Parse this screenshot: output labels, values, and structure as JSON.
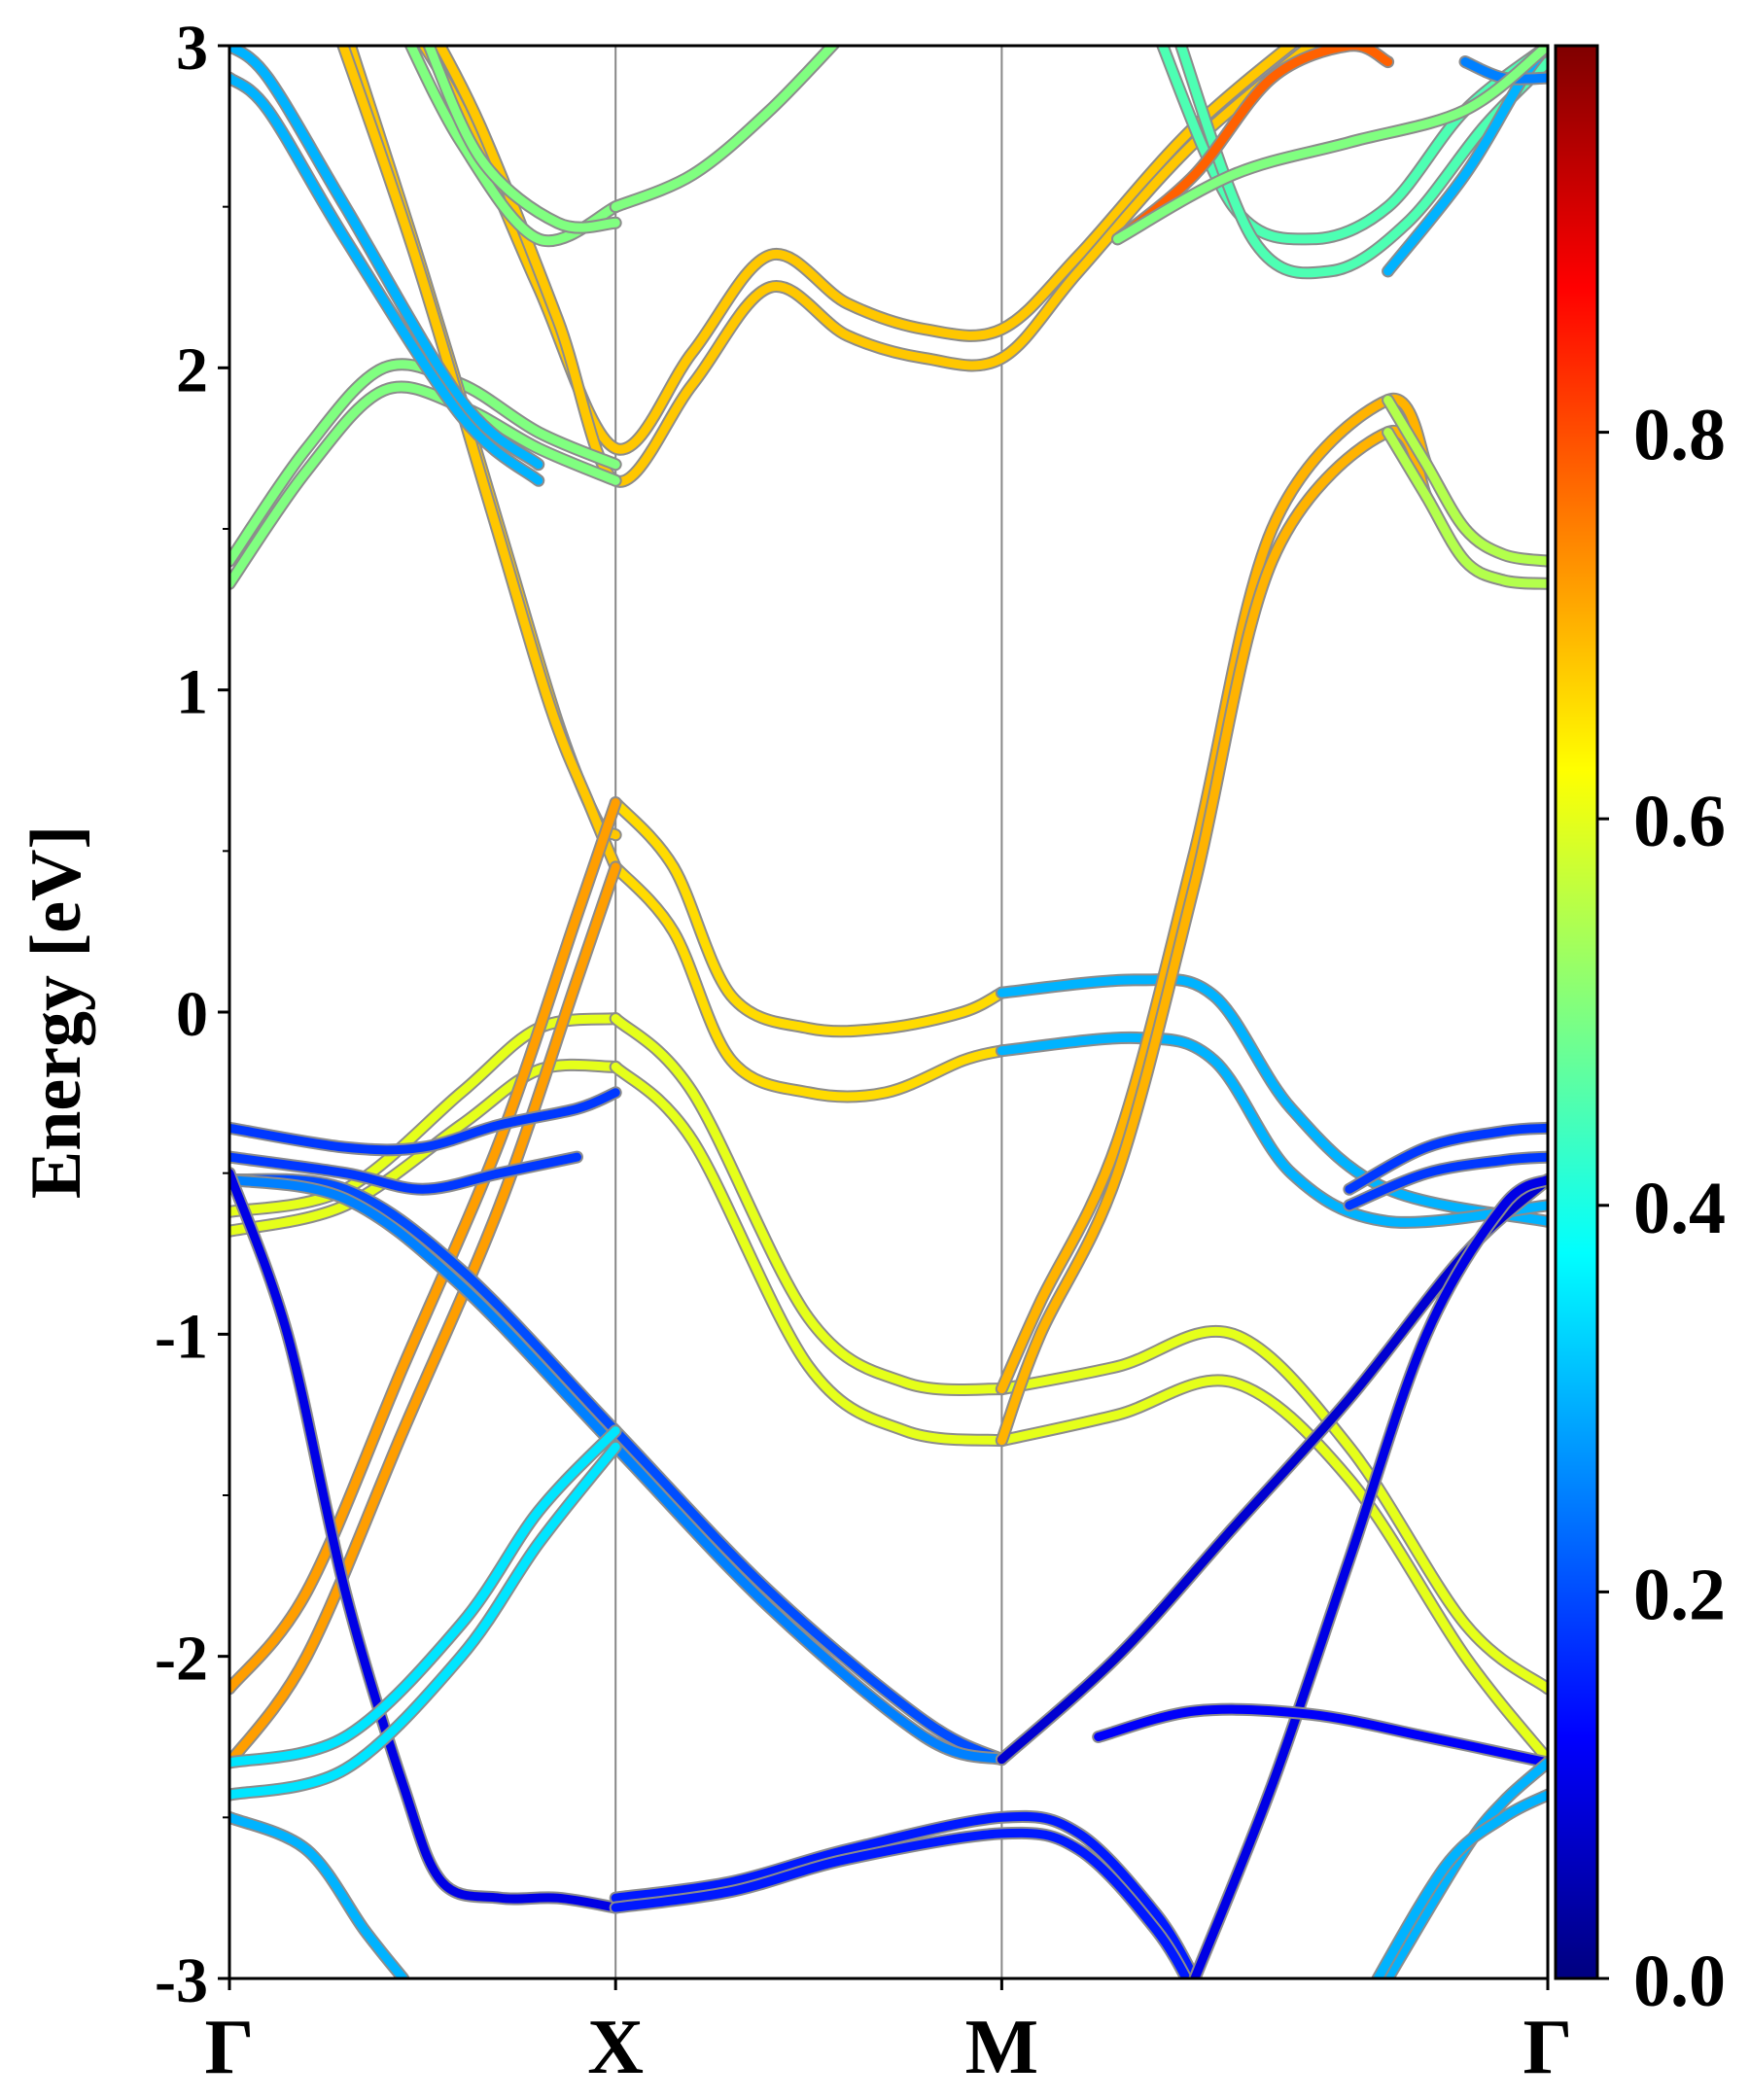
{
  "chart_data": {
    "type": "line",
    "title": "",
    "ylabel": "Energy [eV]",
    "xlabel": "",
    "ylim": [
      -3,
      3
    ],
    "y_ticks": [
      "-3",
      "-2",
      "-1",
      "0",
      "1",
      "2",
      "3"
    ],
    "k_points": [
      "Γ",
      "X",
      "M",
      "Γ"
    ],
    "k_positions": [
      0,
      1,
      2,
      3.414
    ],
    "grid": "vertical lines at high-symmetry points",
    "colorbar": {
      "colormap": "jet",
      "range": [
        0,
        1
      ],
      "ticks": [
        "0.0",
        "0.2",
        "0.4",
        "0.6",
        "0.8"
      ]
    },
    "series": [
      {
        "c": 0.68,
        "x": [
          0.45,
          0.6,
          0.8,
          1.0,
          1.2,
          1.4,
          1.6,
          1.8,
          2.0,
          2.2,
          2.5,
          2.85
        ],
        "y": [
          3.1,
          2.8,
          2.25,
          1.75,
          2.05,
          2.35,
          2.2,
          2.12,
          2.12,
          2.35,
          2.75,
          3.1
        ]
      },
      {
        "c": 0.68,
        "x": [
          0.5,
          0.65,
          0.85,
          1.0,
          1.2,
          1.4,
          1.6,
          1.8,
          2.0,
          2.2,
          2.5,
          2.85
        ],
        "y": [
          3.1,
          2.75,
          2.15,
          1.65,
          1.95,
          2.25,
          2.1,
          2.03,
          2.03,
          2.3,
          2.7,
          3.05
        ]
      },
      {
        "c": 0.5,
        "x": [
          0,
          0.2,
          0.4,
          0.6,
          0.8,
          1.0
        ],
        "y": [
          1.4,
          1.75,
          2.0,
          1.95,
          1.8,
          1.7
        ]
      },
      {
        "c": 0.5,
        "x": [
          0,
          0.2,
          0.4,
          0.6,
          0.8,
          1.0
        ],
        "y": [
          1.33,
          1.68,
          1.93,
          1.88,
          1.75,
          1.65
        ]
      },
      {
        "c": 0.68,
        "x": [
          0.3,
          0.5,
          0.7,
          0.85,
          0.95,
          1.0
        ],
        "y": [
          3.05,
          2.3,
          1.5,
          0.9,
          0.6,
          0.55
        ]
      },
      {
        "c": 0.68,
        "x": [
          0.28,
          0.48,
          0.68,
          0.83,
          0.93,
          1.0
        ],
        "y": [
          3.05,
          2.35,
          1.55,
          0.95,
          0.65,
          0.45
        ]
      },
      {
        "c": 0.66,
        "x": [
          1.0,
          1.15,
          1.3,
          1.5,
          1.7,
          1.9,
          2.0
        ],
        "y": [
          0.65,
          0.45,
          0.05,
          -0.05,
          -0.05,
          0.0,
          0.06
        ]
      },
      {
        "c": 0.66,
        "x": [
          1.0,
          1.15,
          1.3,
          1.5,
          1.7,
          1.9,
          2.0
        ],
        "y": [
          0.45,
          0.25,
          -0.15,
          -0.25,
          -0.25,
          -0.15,
          -0.12
        ]
      },
      {
        "c": 0.3,
        "x": [
          2.0,
          2.35,
          2.55,
          2.75,
          3.0,
          3.414
        ],
        "y": [
          0.06,
          0.1,
          0.05,
          -0.3,
          -0.55,
          -0.65
        ]
      },
      {
        "c": 0.3,
        "x": [
          2.0,
          2.35,
          2.55,
          2.75,
          3.0,
          3.414
        ],
        "y": [
          -0.12,
          -0.08,
          -0.15,
          -0.5,
          -0.65,
          -0.6
        ]
      },
      {
        "c": 0.6,
        "x": [
          0,
          0.3,
          0.6,
          0.8,
          1.0
        ],
        "y": [
          -0.62,
          -0.55,
          -0.25,
          -0.05,
          -0.02
        ]
      },
      {
        "c": 0.6,
        "x": [
          0,
          0.3,
          0.6,
          0.8,
          1.0
        ],
        "y": [
          -0.68,
          -0.6,
          -0.35,
          -0.18,
          -0.17
        ]
      },
      {
        "c": 0.6,
        "x": [
          1.0,
          1.2,
          1.5,
          1.75,
          2.0
        ],
        "y": [
          -0.02,
          -0.25,
          -0.95,
          -1.15,
          -1.17
        ]
      },
      {
        "c": 0.6,
        "x": [
          1.0,
          1.2,
          1.5,
          1.75,
          2.0
        ],
        "y": [
          -0.17,
          -0.4,
          -1.1,
          -1.3,
          -1.33
        ]
      },
      {
        "c": 0.6,
        "x": [
          2.0,
          2.3,
          2.6,
          2.9,
          3.2,
          3.414
        ],
        "y": [
          -1.17,
          -1.1,
          -1.0,
          -1.35,
          -1.9,
          -2.1
        ]
      },
      {
        "c": 0.6,
        "x": [
          2.0,
          2.3,
          2.6,
          2.9,
          3.2,
          3.414
        ],
        "y": [
          -1.33,
          -1.25,
          -1.15,
          -1.45,
          -2.0,
          -2.32
        ]
      },
      {
        "c": 0.7,
        "x": [
          2.0,
          2.1,
          2.3,
          2.5,
          2.7,
          3.0,
          3.1
        ],
        "y": [
          -1.17,
          -0.9,
          -0.4,
          0.5,
          1.5,
          1.9,
          1.7
        ]
      },
      {
        "c": 0.7,
        "x": [
          2.0,
          2.1,
          2.3,
          2.5,
          2.7,
          3.0,
          3.1
        ],
        "y": [
          -1.33,
          -1.0,
          -0.5,
          0.4,
          1.4,
          1.8,
          1.6
        ]
      },
      {
        "c": 0.55,
        "x": [
          3.0,
          3.1,
          3.2,
          3.3,
          3.414
        ],
        "y": [
          1.9,
          1.7,
          1.5,
          1.42,
          1.4
        ]
      },
      {
        "c": 0.55,
        "x": [
          3.0,
          3.1,
          3.2,
          3.3,
          3.414
        ],
        "y": [
          1.8,
          1.6,
          1.4,
          1.34,
          1.33
        ]
      },
      {
        "c": 0.72,
        "x": [
          0,
          0.2,
          0.45,
          0.7,
          0.9,
          1.0
        ],
        "y": [
          -2.1,
          -1.8,
          -1.1,
          -0.4,
          0.3,
          0.65
        ]
      },
      {
        "c": 0.72,
        "x": [
          0,
          0.2,
          0.45,
          0.7,
          0.9,
          1.0
        ],
        "y": [
          -2.33,
          -2.0,
          -1.3,
          -0.6,
          0.1,
          0.45
        ]
      },
      {
        "c": 0.2,
        "x": [
          0,
          0.3,
          0.6,
          1.0,
          1.4,
          1.8,
          2.0
        ],
        "y": [
          -0.52,
          -0.55,
          -0.8,
          -1.3,
          -1.8,
          -2.2,
          -2.32
        ]
      },
      {
        "c": 0.25,
        "x": [
          0,
          0.3,
          0.6,
          1.0,
          1.4,
          1.8,
          2.0
        ],
        "y": [
          -0.52,
          -0.58,
          -0.85,
          -1.35,
          -1.85,
          -2.25,
          -2.32
        ]
      },
      {
        "c": 0.08,
        "x": [
          2.0,
          2.3,
          2.6,
          2.9,
          3.2,
          3.414
        ],
        "y": [
          -2.32,
          -2.0,
          -1.6,
          -1.2,
          -0.75,
          -0.52
        ]
      },
      {
        "c": 0.18,
        "x": [
          0,
          0.3,
          0.5,
          0.7,
          0.9,
          1.0
        ],
        "y": [
          -0.36,
          -0.42,
          -0.42,
          -0.35,
          -0.3,
          -0.25
        ]
      },
      {
        "c": 0.18,
        "x": [
          2.9,
          3.1,
          3.3,
          3.414
        ],
        "y": [
          -0.55,
          -0.42,
          -0.37,
          -0.36
        ]
      },
      {
        "c": 0.18,
        "x": [
          0,
          0.3,
          0.5,
          0.7,
          0.9
        ],
        "y": [
          -0.45,
          -0.5,
          -0.55,
          -0.5,
          -0.45
        ]
      },
      {
        "c": 0.18,
        "x": [
          2.9,
          3.1,
          3.3,
          3.414
        ],
        "y": [
          -0.6,
          -0.5,
          -0.46,
          -0.45
        ]
      },
      {
        "c": 0.1,
        "x": [
          0,
          0.15,
          0.3,
          0.45,
          0.55,
          0.7,
          0.85,
          1.0
        ],
        "y": [
          -0.5,
          -1.0,
          -1.8,
          -2.4,
          -2.7,
          -2.75,
          -2.75,
          -2.78
        ]
      },
      {
        "c": 0.15,
        "x": [
          1.0,
          1.3,
          1.6,
          2.0,
          2.2,
          2.4,
          2.5
        ],
        "y": [
          -2.75,
          -2.7,
          -2.6,
          -2.5,
          -2.55,
          -2.8,
          -3.0
        ]
      },
      {
        "c": 0.15,
        "x": [
          1.0,
          1.3,
          1.6,
          2.0,
          2.2,
          2.4,
          2.5
        ],
        "y": [
          -2.78,
          -2.73,
          -2.63,
          -2.55,
          -2.6,
          -2.85,
          -3.05
        ]
      },
      {
        "c": 0.1,
        "x": [
          2.5,
          2.7,
          2.9,
          3.1,
          3.3,
          3.414
        ],
        "y": [
          -3.0,
          -2.4,
          -1.7,
          -1.0,
          -0.6,
          -0.52
        ]
      },
      {
        "c": 0.12,
        "x": [
          2.25,
          2.5,
          2.8,
          3.1,
          3.414
        ],
        "y": [
          -2.25,
          -2.17,
          -2.18,
          -2.25,
          -2.33
        ]
      },
      {
        "c": 0.35,
        "x": [
          0,
          0.3,
          0.6,
          0.8,
          1.0
        ],
        "y": [
          -2.33,
          -2.25,
          -1.9,
          -1.55,
          -1.3
        ]
      },
      {
        "c": 0.35,
        "x": [
          0,
          0.3,
          0.6,
          0.8,
          1.0
        ],
        "y": [
          -2.43,
          -2.35,
          -2.0,
          -1.65,
          -1.35
        ]
      },
      {
        "c": 0.3,
        "x": [
          0,
          0.2,
          0.35,
          0.45
        ],
        "y": [
          -2.5,
          -2.6,
          -2.85,
          -3.0
        ]
      },
      {
        "c": 0.3,
        "x": [
          3.0,
          3.2,
          3.3,
          3.414
        ],
        "y": [
          -3.0,
          -2.6,
          -2.45,
          -2.33
        ]
      },
      {
        "c": 0.3,
        "x": [
          2.95,
          3.15,
          3.3,
          3.414
        ],
        "y": [
          -3.05,
          -2.65,
          -2.5,
          -2.43
        ]
      },
      {
        "c": 0.5,
        "x": [
          0.45,
          0.6,
          0.8,
          1.0
        ],
        "y": [
          3.05,
          2.7,
          2.4,
          2.5
        ]
      },
      {
        "c": 0.5,
        "x": [
          0.5,
          0.65,
          0.85,
          1.0
        ],
        "y": [
          3.05,
          2.65,
          2.45,
          2.45
        ]
      },
      {
        "c": 0.5,
        "x": [
          1.0,
          1.2,
          1.4,
          1.6
        ],
        "y": [
          2.5,
          2.6,
          2.8,
          3.05
        ]
      },
      {
        "c": 0.45,
        "x": [
          2.4,
          2.6,
          2.8,
          3.0,
          3.2,
          3.414
        ],
        "y": [
          3.05,
          2.5,
          2.4,
          2.5,
          2.8,
          3.0
        ]
      },
      {
        "c": 0.45,
        "x": [
          2.45,
          2.65,
          2.85,
          3.05,
          3.25,
          3.414
        ],
        "y": [
          3.05,
          2.4,
          2.3,
          2.45,
          2.75,
          2.95
        ]
      },
      {
        "c": 0.3,
        "x": [
          3.0,
          3.2,
          3.35,
          3.414
        ],
        "y": [
          2.3,
          2.6,
          2.9,
          3.0
        ]
      },
      {
        "c": 0.25,
        "x": [
          3.2,
          3.3,
          3.414
        ],
        "y": [
          2.95,
          2.9,
          2.9
        ]
      },
      {
        "c": 0.3,
        "x": [
          0,
          0.1,
          0.3,
          0.6,
          0.8
        ],
        "y": [
          3.0,
          2.9,
          2.5,
          1.9,
          1.7
        ]
      },
      {
        "c": 0.3,
        "x": [
          0,
          0.1,
          0.3,
          0.6,
          0.8
        ],
        "y": [
          2.9,
          2.8,
          2.4,
          1.85,
          1.65
        ]
      },
      {
        "c": 0.78,
        "x": [
          2.3,
          2.5,
          2.7,
          2.9,
          3.0
        ],
        "y": [
          2.4,
          2.6,
          2.9,
          3.0,
          2.95
        ]
      },
      {
        "c": 0.5,
        "x": [
          2.3,
          2.6,
          2.9,
          3.2,
          3.414
        ],
        "y": [
          2.4,
          2.6,
          2.7,
          2.8,
          3.0
        ]
      }
    ]
  }
}
